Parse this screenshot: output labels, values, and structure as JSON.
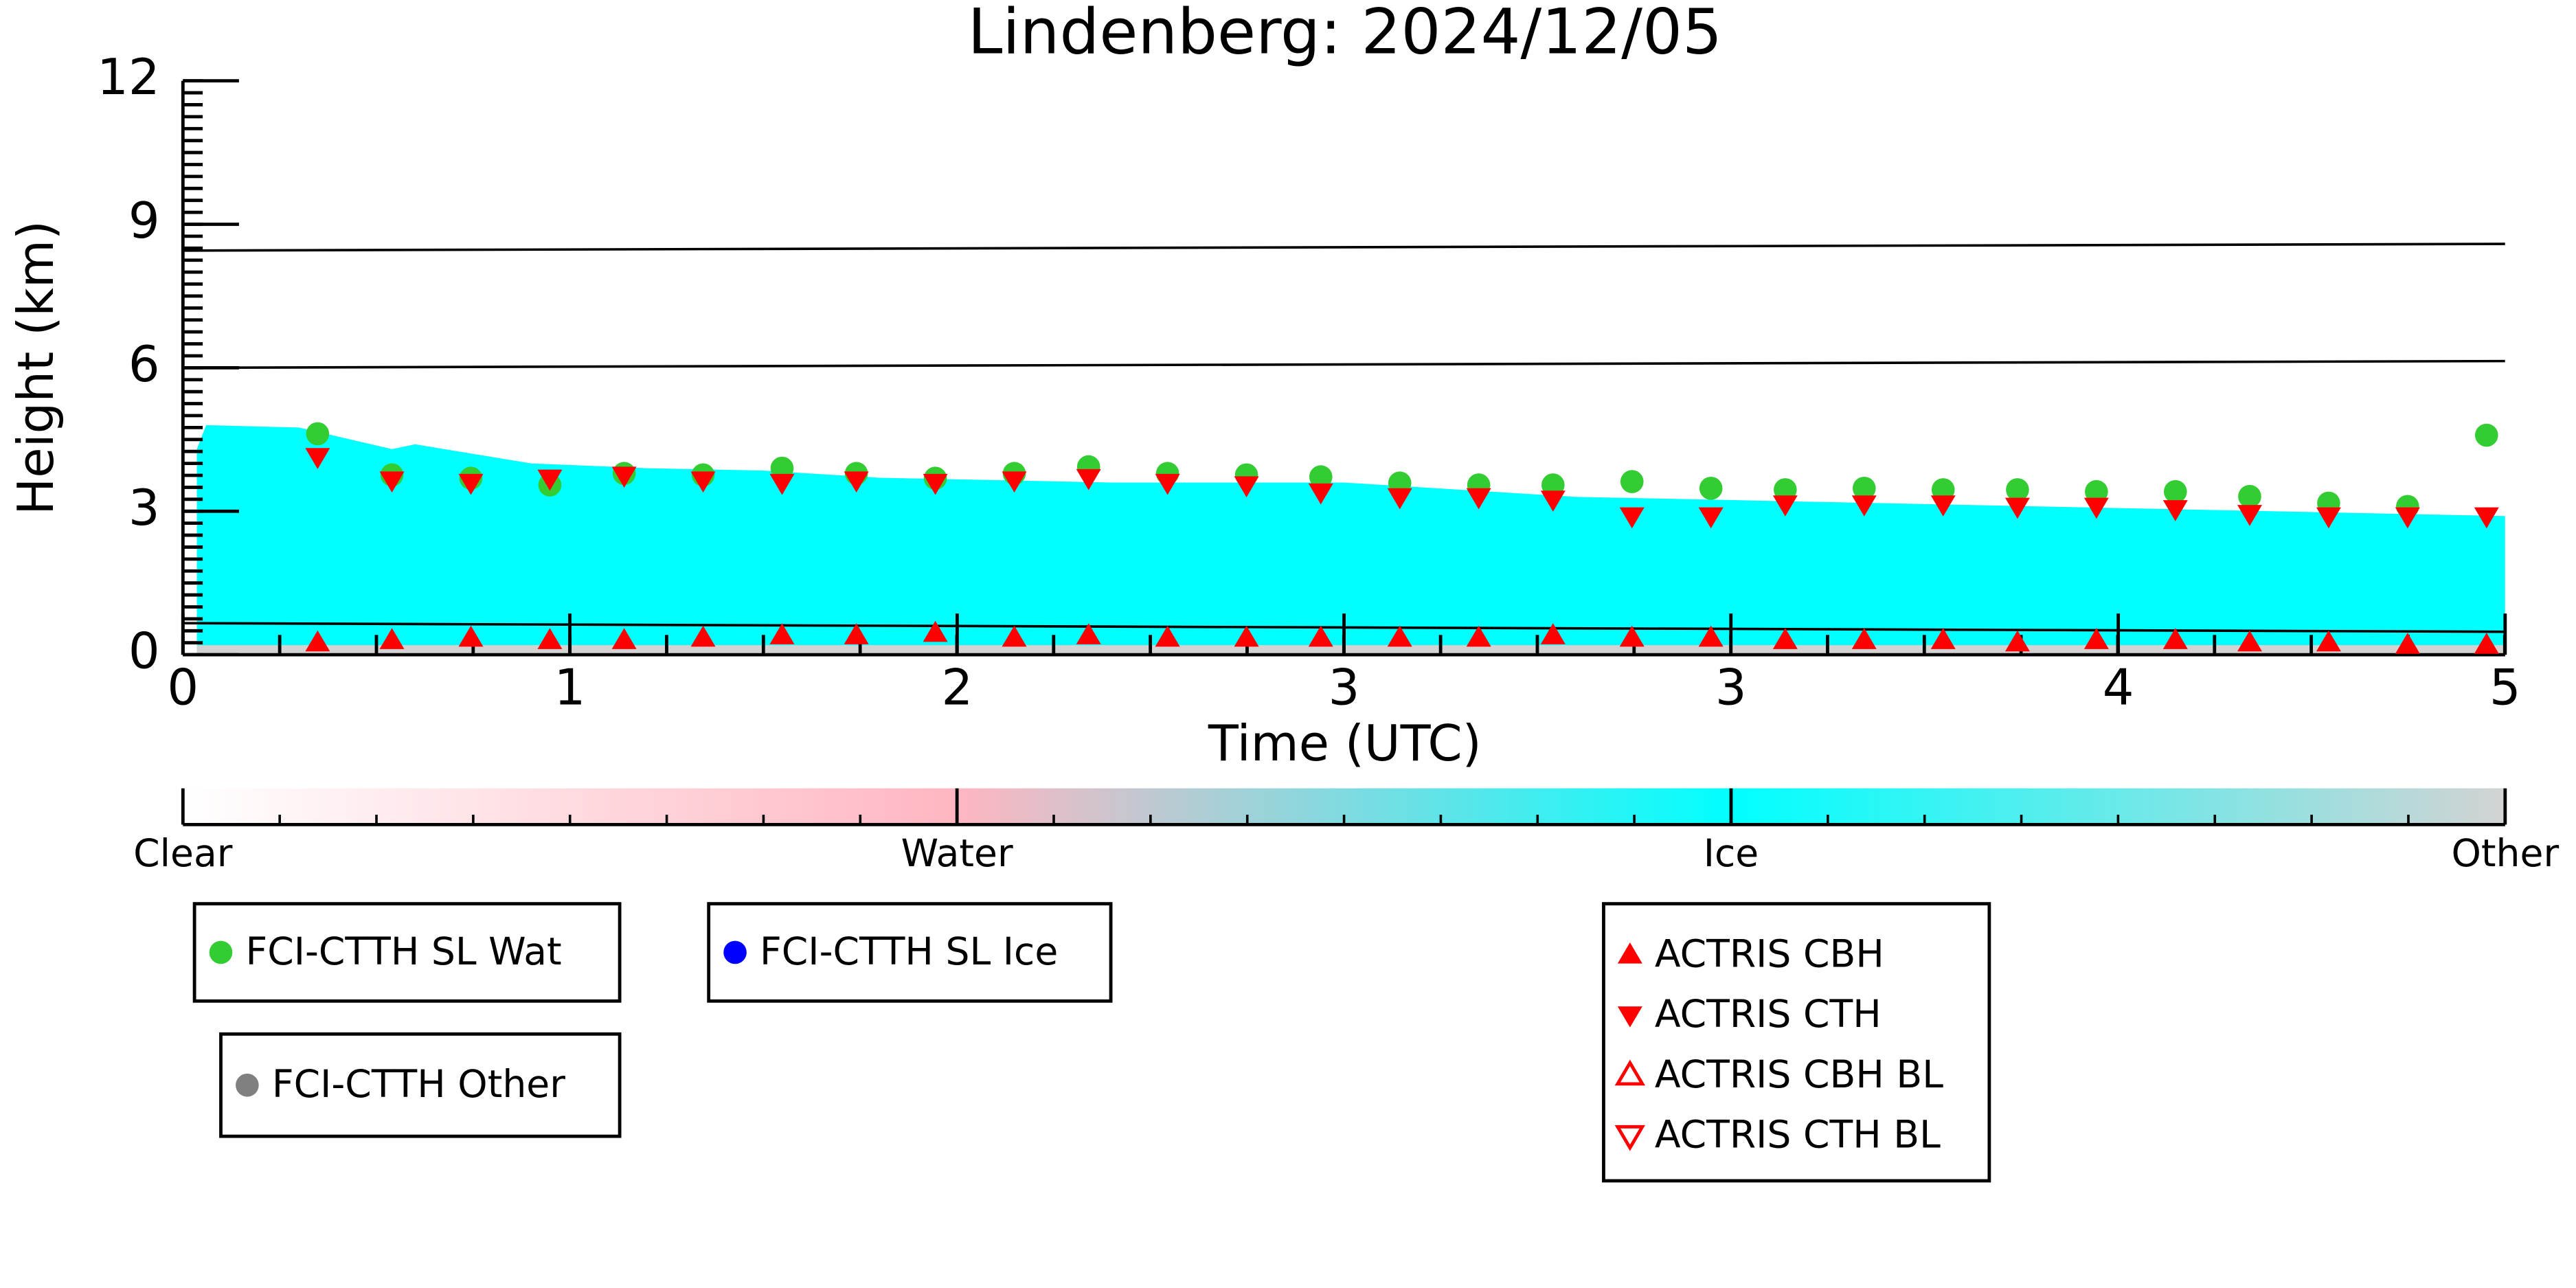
{
  "chart_data": {
    "type": "scatter",
    "title": "Lindenberg: 2024/12/05",
    "x_label": "Time (UTC)",
    "y_label": "Height (km)",
    "xlim": [
      0,
      5
    ],
    "xticks": [
      {
        "value": 0,
        "label": "0"
      },
      {
        "value": 0.833,
        "label": "1"
      },
      {
        "value": 1.667,
        "label": "2"
      },
      {
        "value": 2.5,
        "label": "3"
      },
      {
        "value": 3.333,
        "label": "3"
      },
      {
        "value": 4.167,
        "label": "4"
      },
      {
        "value": 5,
        "label": "5"
      }
    ],
    "x_minor_step": 0.2083,
    "ylim": [
      0,
      12
    ],
    "yticks": [
      0,
      3,
      6,
      9,
      12
    ],
    "y_minor_step": 0.25,
    "classification": {
      "x": [
        0.03,
        0.05,
        0.25,
        0.45,
        0.5,
        0.75,
        1.0,
        1.25,
        1.5,
        2.0,
        2.5,
        3.0,
        3.5,
        4.0,
        4.5,
        5.0
      ],
      "ice_top": [
        4.3,
        4.8,
        4.75,
        4.3,
        4.4,
        4.0,
        3.9,
        3.85,
        3.7,
        3.6,
        3.6,
        3.3,
        3.2,
        3.1,
        3.0,
        2.9
      ],
      "other_top": [
        0.2,
        0.2,
        0.2,
        0.2,
        0.2,
        0.2,
        0.2,
        0.2,
        0.2,
        0.2,
        0.2,
        0.2,
        0.2,
        0.2,
        0.2,
        0.2
      ],
      "ice_color": "#00ffff",
      "other_color": "#d3d3d3"
    },
    "lines": [
      {
        "y": [
          8.45,
          8.59
        ]
      },
      {
        "y": [
          6.0,
          6.14
        ]
      },
      {
        "y": [
          0.66,
          0.48
        ]
      }
    ],
    "series": [
      {
        "name": "FCI-CTTH SL Wat",
        "color": "#33cc33",
        "marker": "circle",
        "x": [
          0.29,
          0.45,
          0.62,
          0.79,
          0.95,
          1.12,
          1.29,
          1.45,
          1.62,
          1.79,
          1.95,
          2.12,
          2.29,
          2.45,
          2.62,
          2.79,
          2.95,
          3.12,
          3.29,
          3.45,
          3.62,
          3.79,
          3.95,
          4.12,
          4.29,
          4.45,
          4.62,
          4.79,
          4.96
        ],
        "values": [
          4.62,
          3.76,
          3.69,
          3.55,
          3.79,
          3.76,
          3.9,
          3.79,
          3.69,
          3.79,
          3.93,
          3.79,
          3.76,
          3.72,
          3.59,
          3.55,
          3.55,
          3.62,
          3.48,
          3.45,
          3.48,
          3.45,
          3.45,
          3.41,
          3.41,
          3.31,
          3.17,
          3.1,
          4.59
        ]
      },
      {
        "name": "FCI-CTTH SL Ice",
        "color": "#0000ff",
        "marker": "circle",
        "x": [],
        "values": []
      },
      {
        "name": "FCI-CTTH Other",
        "color": "#808080",
        "marker": "circle",
        "x": [],
        "values": []
      },
      {
        "name": "ACTRIS CBH",
        "color": "#ff0000",
        "marker": "up",
        "x": [
          0.29,
          0.45,
          0.62,
          0.79,
          0.95,
          1.12,
          1.29,
          1.45,
          1.62,
          1.79,
          1.95,
          2.12,
          2.29,
          2.45,
          2.62,
          2.79,
          2.95,
          3.12,
          3.29,
          3.45,
          3.62,
          3.79,
          3.95,
          4.12,
          4.29,
          4.45,
          4.62,
          4.79,
          4.96
        ],
        "values": [
          0.25,
          0.3,
          0.35,
          0.3,
          0.3,
          0.35,
          0.4,
          0.4,
          0.45,
          0.35,
          0.4,
          0.35,
          0.35,
          0.35,
          0.35,
          0.35,
          0.4,
          0.35,
          0.35,
          0.3,
          0.3,
          0.3,
          0.25,
          0.3,
          0.3,
          0.25,
          0.25,
          0.2,
          0.2
        ]
      },
      {
        "name": "ACTRIS CTH",
        "color": "#ff0000",
        "marker": "down",
        "x": [
          0.29,
          0.45,
          0.62,
          0.79,
          0.95,
          1.12,
          1.29,
          1.45,
          1.62,
          1.79,
          1.95,
          2.12,
          2.29,
          2.45,
          2.62,
          2.79,
          2.95,
          3.12,
          3.29,
          3.45,
          3.62,
          3.79,
          3.95,
          4.12,
          4.29,
          4.45,
          4.62,
          4.79,
          4.96
        ],
        "values": [
          4.14,
          3.65,
          3.6,
          3.69,
          3.75,
          3.65,
          3.6,
          3.65,
          3.6,
          3.65,
          3.7,
          3.6,
          3.55,
          3.4,
          3.3,
          3.3,
          3.25,
          2.9,
          2.9,
          3.15,
          3.15,
          3.15,
          3.1,
          3.1,
          3.05,
          2.95,
          2.9,
          2.9,
          2.9
        ]
      },
      {
        "name": "ACTRIS CBH BL",
        "color": "#ff0000",
        "marker": "up-open",
        "x": [],
        "values": []
      },
      {
        "name": "ACTRIS CTH BL",
        "color": "#ff0000",
        "marker": "down-open",
        "x": [],
        "values": []
      }
    ],
    "colorbar": {
      "labels": [
        "Clear",
        "Water",
        "Ice",
        "Other"
      ],
      "colors": [
        "#ffffff",
        "#ffb6c1",
        "#00ffff",
        "#d3d3d3"
      ],
      "minor_step": 0.125
    }
  }
}
